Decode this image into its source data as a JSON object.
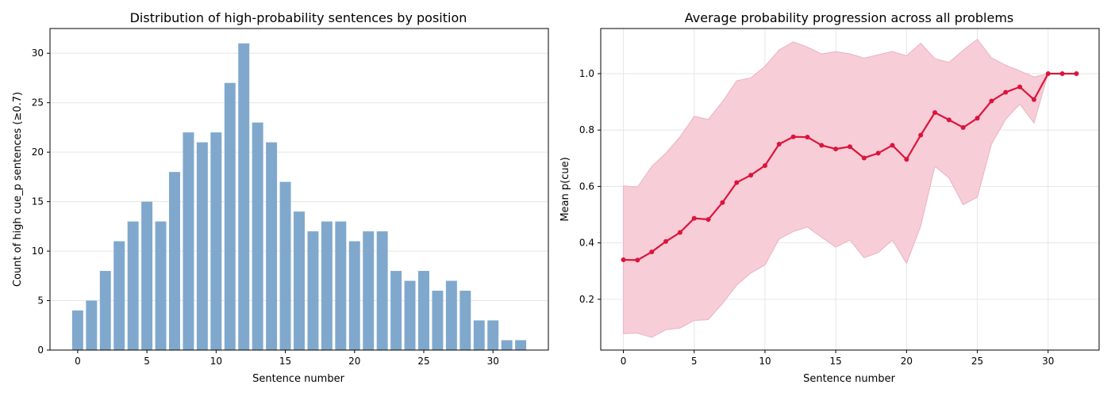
{
  "chart_data": [
    {
      "type": "bar",
      "title": "Distribution of high-probability sentences by position",
      "xlabel": "Sentence number",
      "ylabel": "Count of high cue_p sentences (≥0.7)",
      "x": [
        0,
        1,
        2,
        3,
        4,
        5,
        6,
        7,
        8,
        9,
        10,
        11,
        12,
        13,
        14,
        15,
        16,
        17,
        18,
        19,
        20,
        21,
        22,
        23,
        24,
        25,
        26,
        27,
        28,
        29,
        30,
        31,
        32
      ],
      "values": [
        4,
        5,
        8,
        11,
        13,
        15,
        13,
        18,
        22,
        21,
        22,
        27,
        31,
        23,
        21,
        17,
        14,
        12,
        13,
        13,
        11,
        12,
        12,
        8,
        7,
        8,
        6,
        7,
        6,
        3,
        3,
        1,
        1
      ],
      "xlim": [
        -2,
        34
      ],
      "ylim": [
        0,
        32.5
      ],
      "xticks": [
        0,
        5,
        10,
        15,
        20,
        25,
        30
      ],
      "yticks": [
        0,
        5,
        10,
        15,
        20,
        25,
        30
      ],
      "bar_color": "#80a8cd",
      "grid": true
    },
    {
      "type": "line",
      "title": "Average probability progression across all problems",
      "xlabel": "Sentence number",
      "ylabel": "Mean p(cue)",
      "x": [
        0,
        1,
        2,
        3,
        4,
        5,
        6,
        7,
        8,
        9,
        10,
        11,
        12,
        13,
        14,
        15,
        16,
        17,
        18,
        19,
        20,
        21,
        22,
        23,
        24,
        25,
        26,
        27,
        28,
        29,
        30,
        31,
        32
      ],
      "series": [
        {
          "values": [
            0.34,
            0.339,
            0.368,
            0.405,
            0.437,
            0.487,
            0.483,
            0.543,
            0.614,
            0.64,
            0.674,
            0.75,
            0.776,
            0.775,
            0.746,
            0.733,
            0.741,
            0.701,
            0.718,
            0.746,
            0.696,
            0.782,
            0.862,
            0.836,
            0.809,
            0.842,
            0.903,
            0.934,
            0.953,
            0.908,
            1.0,
            1.0,
            1.0
          ],
          "lower": [
            0.078,
            0.08,
            0.065,
            0.092,
            0.098,
            0.125,
            0.128,
            0.185,
            0.25,
            0.293,
            0.322,
            0.414,
            0.44,
            0.456,
            0.42,
            0.385,
            0.41,
            0.347,
            0.366,
            0.41,
            0.327,
            0.46,
            0.671,
            0.63,
            0.535,
            0.562,
            0.75,
            0.838,
            0.892,
            0.825,
            1.0,
            1.0,
            1.0
          ],
          "upper": [
            0.602,
            0.598,
            0.671,
            0.718,
            0.776,
            0.849,
            0.838,
            0.901,
            0.975,
            0.985,
            1.026,
            1.084,
            1.113,
            1.094,
            1.07,
            1.078,
            1.07,
            1.055,
            1.067,
            1.079,
            1.063,
            1.108,
            1.053,
            1.04,
            1.083,
            1.122,
            1.056,
            1.03,
            1.01,
            0.988,
            1.0,
            1.0,
            1.0
          ]
        }
      ],
      "xlim": [
        -1.6,
        33.6
      ],
      "ylim": [
        0.02,
        1.16
      ],
      "xticks": [
        0,
        5,
        10,
        15,
        20,
        25,
        30
      ],
      "yticks": [
        0.2,
        0.4,
        0.6,
        0.8,
        1.0
      ],
      "line_color": "#dc143c",
      "band_color": "#f7cdd7",
      "grid": true
    }
  ]
}
